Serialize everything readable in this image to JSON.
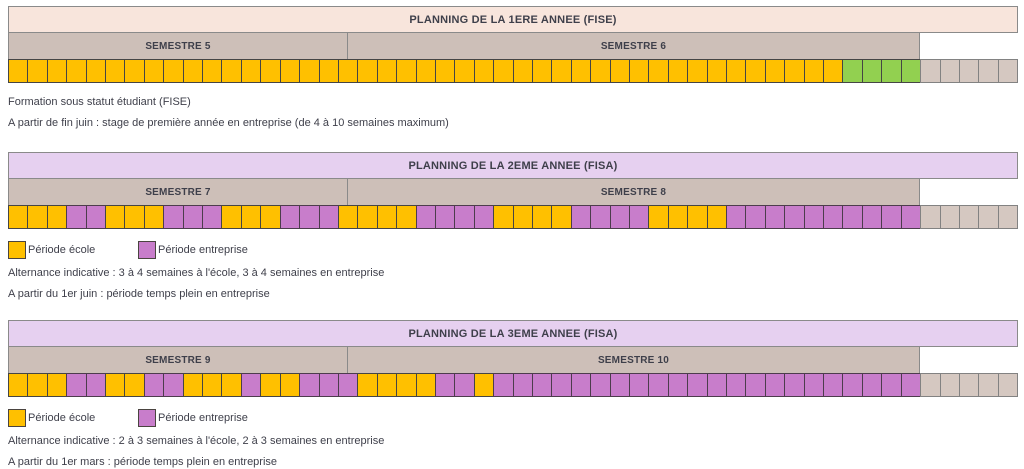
{
  "page": {
    "background": "#ffffff",
    "text_color": "#3e3f4a"
  },
  "legend": {
    "ecole": "Période école",
    "entreprise": "Période entreprise"
  },
  "week_palette": {
    "E": {
      "name": "periode-ecole",
      "fill": "#FFC000",
      "border": "#454545"
    },
    "P": {
      "name": "periode-entreprise",
      "fill": "#C87DCB",
      "border": "#4d3c4d"
    },
    "G": {
      "name": "stage-entreprise",
      "fill": "#92D050",
      "border": "#454545"
    },
    "N": {
      "name": "hors-periode",
      "fill": "#D5C8C1",
      "border": "#828282"
    }
  },
  "sections": [
    {
      "title": "PLANNING DE LA 1ERE ANNEE (FISE)",
      "header_bg": "#F8E5DC",
      "semesters": [
        "SEMESTRE 5",
        "SEMESTRE 6"
      ],
      "weeks": [
        "E",
        "E",
        "E",
        "E",
        "E",
        "E",
        "E",
        "E",
        "E",
        "E",
        "E",
        "E",
        "E",
        "E",
        "E",
        "E",
        "E",
        "E",
        "E",
        "E",
        "E",
        "E",
        "E",
        "E",
        "E",
        "E",
        "E",
        "E",
        "E",
        "E",
        "E",
        "E",
        "E",
        "E",
        "E",
        "E",
        "E",
        "E",
        "E",
        "E",
        "E",
        "E",
        "E",
        "G",
        "G",
        "G",
        "G",
        "N",
        "N",
        "N",
        "N",
        "N"
      ],
      "notes": [
        "Formation sous statut étudiant (FISE)",
        "A partir de fin juin : stage de première année en entreprise (de 4 à 10 semaines maximum)"
      ]
    },
    {
      "title": "PLANNING DE LA 2EME ANNEE (FISA)",
      "header_bg": "#E6D0F0",
      "semesters": [
        "SEMESTRE 7",
        "SEMESTRE 8"
      ],
      "weeks": [
        "E",
        "E",
        "E",
        "P",
        "P",
        "E",
        "E",
        "E",
        "P",
        "P",
        "P",
        "E",
        "E",
        "E",
        "P",
        "P",
        "P",
        "E",
        "E",
        "E",
        "E",
        "P",
        "P",
        "P",
        "P",
        "E",
        "E",
        "E",
        "E",
        "P",
        "P",
        "P",
        "P",
        "E",
        "E",
        "E",
        "E",
        "P",
        "P",
        "P",
        "P",
        "P",
        "P",
        "P",
        "P",
        "P",
        "P",
        "N",
        "N",
        "N",
        "N",
        "N"
      ],
      "notes": [
        "Alternance indicative : 3 à 4 semaines à l'école, 3 à 4 semaines en entreprise",
        "A partir du 1er juin : période temps plein en entreprise"
      ]
    },
    {
      "title": "PLANNING DE LA 3EME ANNEE (FISA)",
      "header_bg": "#E6D0F0",
      "semesters": [
        "SEMESTRE 9",
        "SEMESTRE 10"
      ],
      "weeks": [
        "E",
        "E",
        "E",
        "P",
        "P",
        "E",
        "E",
        "P",
        "P",
        "E",
        "E",
        "E",
        "P",
        "E",
        "E",
        "P",
        "P",
        "P",
        "E",
        "E",
        "E",
        "E",
        "P",
        "P",
        "E",
        "P",
        "P",
        "P",
        "P",
        "P",
        "P",
        "P",
        "P",
        "P",
        "P",
        "P",
        "P",
        "P",
        "P",
        "P",
        "P",
        "P",
        "P",
        "P",
        "P",
        "P",
        "P",
        "N",
        "N",
        "N",
        "N",
        "N"
      ],
      "notes": [
        "Alternance indicative : 2 à 3 semaines à l'école, 2 à 3 semaines en entreprise",
        "A partir du 1er mars : période temps plein en entreprise"
      ]
    }
  ]
}
